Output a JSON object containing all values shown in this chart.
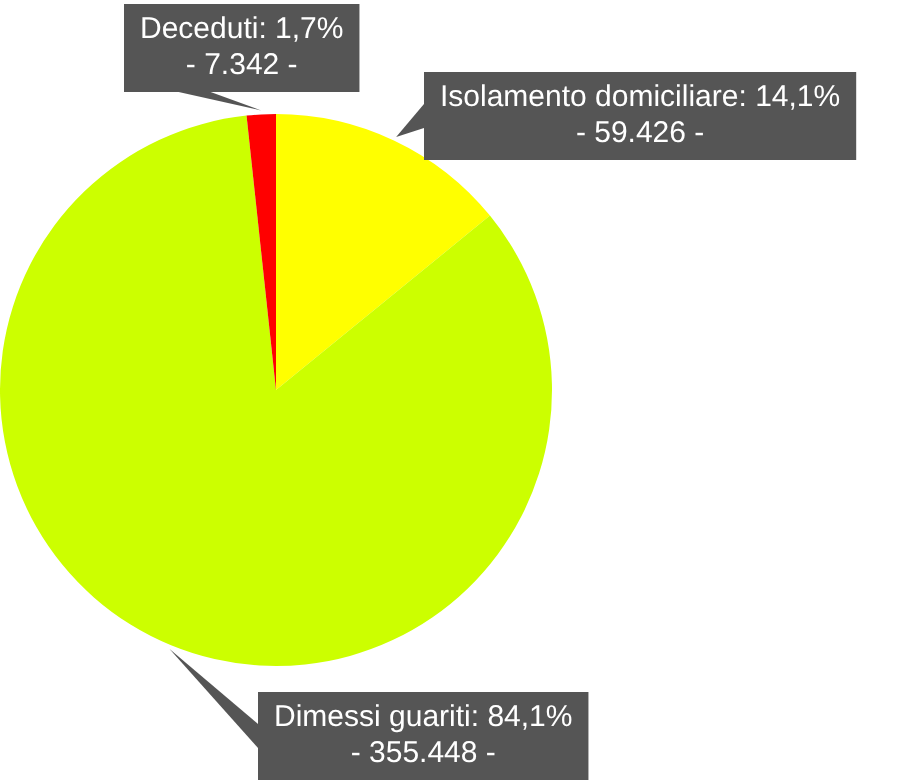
{
  "chart_data": {
    "type": "pie",
    "categories": [
      "Isolamento domiciliare",
      "Dimessi guariti",
      "Deceduti"
    ],
    "values": [
      14.1,
      84.1,
      1.7
    ],
    "colors": [
      "#ffff00",
      "#ccff00",
      "#ff0000"
    ],
    "value_labels": [
      "14,1%",
      "84,1%",
      "1,7%"
    ],
    "annotations": [
      "- 59.426 -",
      "- 355.448 -",
      "- 7.342 -"
    ],
    "legend": false
  }
}
